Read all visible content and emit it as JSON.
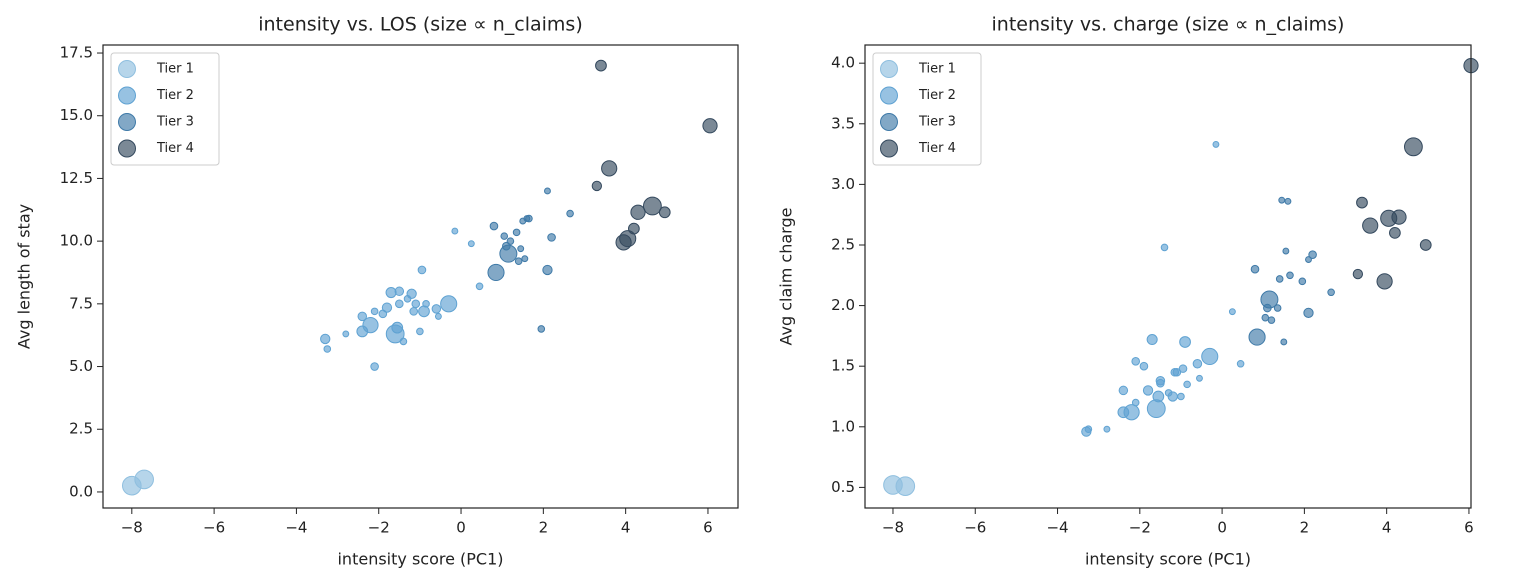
{
  "chart_data": [
    {
      "type": "scatter",
      "title": "intensity vs. LOS (size ∝ n_claims)",
      "xlabel": "intensity score (PC1)",
      "ylabel": "Avg length of stay",
      "xlim": [
        -8.7,
        6.73
      ],
      "ylim": [
        -0.64,
        17.82
      ],
      "xticks": [
        {
          "value": -8,
          "label": "−8"
        },
        {
          "value": -6,
          "label": "−6"
        },
        {
          "value": -4,
          "label": "−4"
        },
        {
          "value": -2,
          "label": "−2"
        },
        0,
        2,
        4,
        6
      ],
      "yticks": [
        {
          "value": 0,
          "label": "0.0"
        },
        2.5,
        {
          "value": 5,
          "label": "5.0"
        },
        7.5,
        {
          "value": 10,
          "label": "10.0"
        },
        12.5,
        {
          "value": 15,
          "label": "15.0"
        },
        17.5
      ],
      "legend": "upper left",
      "series": [
        {
          "name": "Tier 1",
          "color": "#8fbfdf",
          "x": [
            -8.0,
            -7.7
          ],
          "y": [
            0.25,
            0.5
          ],
          "sizes": [
            120,
            120
          ]
        },
        {
          "name": "Tier 2",
          "color": "#5fa2d2",
          "x": [
            -3.3,
            -3.25,
            -2.8,
            -2.4,
            -2.4,
            -2.2,
            -2.1,
            -2.1,
            -1.9,
            -1.8,
            -1.7,
            -1.6,
            -1.55,
            -1.5,
            -1.5,
            -1.4,
            -1.3,
            -1.2,
            -1.15,
            -1.1,
            -1.0,
            -0.95,
            -0.9,
            -0.85,
            -0.6,
            -0.55,
            -0.3,
            -0.15,
            0.25,
            0.45
          ],
          "y": [
            6.1,
            5.7,
            6.3,
            7.0,
            6.4,
            6.65,
            5.0,
            7.2,
            7.1,
            7.35,
            7.95,
            6.3,
            6.55,
            8.0,
            7.5,
            6.0,
            7.7,
            7.9,
            7.2,
            7.5,
            6.4,
            8.85,
            7.2,
            7.5,
            7.3,
            7.0,
            7.5,
            10.4,
            9.9,
            8.2
          ],
          "sizes": [
            30,
            15,
            12,
            25,
            40,
            80,
            20,
            15,
            20,
            30,
            35,
            110,
            40,
            25,
            20,
            15,
            15,
            30,
            20,
            20,
            15,
            20,
            40,
            15,
            25,
            12,
            90,
            12,
            12,
            15
          ]
        },
        {
          "name": "Tier 3",
          "color": "#3f7aa8",
          "x": [
            0.85,
            0.8,
            1.05,
            1.15,
            1.1,
            1.2,
            1.35,
            1.4,
            1.45,
            1.5,
            1.55,
            1.6,
            1.65,
            1.95,
            2.1,
            2.1,
            2.2,
            2.65
          ],
          "y": [
            8.75,
            10.6,
            10.2,
            9.5,
            9.8,
            10.0,
            10.35,
            9.2,
            9.7,
            10.8,
            9.3,
            10.9,
            10.9,
            6.5,
            12.0,
            8.85,
            10.15,
            11.1
          ],
          "sizes": [
            90,
            20,
            15,
            100,
            20,
            15,
            15,
            15,
            12,
            12,
            12,
            12,
            15,
            15,
            12,
            30,
            20,
            15
          ]
        },
        {
          "name": "Tier 4",
          "color": "#34495e",
          "x": [
            3.3,
            3.4,
            3.6,
            3.95,
            4.05,
            4.2,
            4.3,
            4.65,
            4.95,
            6.05
          ],
          "y": [
            12.2,
            17.0,
            12.9,
            9.95,
            10.1,
            10.5,
            11.15,
            11.4,
            11.15,
            14.6
          ],
          "sizes": [
            30,
            40,
            80,
            80,
            90,
            40,
            70,
            110,
            40,
            70
          ]
        }
      ]
    },
    {
      "type": "scatter",
      "title": "intensity vs. charge (size ∝ n_claims)",
      "xlabel": "intensity score (PC1)",
      "ylabel": "Avg claim charge",
      "xlim": [
        -8.68,
        6.05
      ],
      "ylim": [
        0.33,
        4.15
      ],
      "xticks": [
        {
          "value": -8,
          "label": "−8"
        },
        {
          "value": -6,
          "label": "−6"
        },
        {
          "value": -4,
          "label": "−4"
        },
        {
          "value": -2,
          "label": "−2"
        },
        0,
        2,
        4,
        6
      ],
      "yticks": [
        0.5,
        {
          "value": 1,
          "label": "1.0"
        },
        1.5,
        {
          "value": 2,
          "label": "2.0"
        },
        2.5,
        {
          "value": 3,
          "label": "3.0"
        },
        3.5,
        {
          "value": 4,
          "label": "4.0"
        }
      ],
      "legend": "upper left",
      "series": [
        {
          "name": "Tier 1",
          "color": "#8fbfdf",
          "x": [
            -8.0,
            -7.7
          ],
          "y": [
            0.52,
            0.51
          ],
          "sizes": [
            120,
            120
          ]
        },
        {
          "name": "Tier 2",
          "color": "#5fa2d2",
          "x": [
            -3.3,
            -3.25,
            -2.8,
            -2.4,
            -2.4,
            -2.2,
            -2.1,
            -2.1,
            -1.9,
            -1.8,
            -1.7,
            -1.6,
            -1.55,
            -1.5,
            -1.5,
            -1.4,
            -1.3,
            -1.2,
            -1.15,
            -1.1,
            -1.0,
            -0.95,
            -0.9,
            -0.85,
            -0.6,
            -0.55,
            -0.3,
            -0.15,
            0.25,
            0.45
          ],
          "y": [
            0.96,
            0.98,
            0.98,
            1.3,
            1.12,
            1.12,
            1.54,
            1.2,
            1.5,
            1.3,
            1.72,
            1.15,
            1.25,
            1.38,
            1.36,
            2.48,
            1.28,
            1.25,
            1.45,
            1.45,
            1.25,
            1.48,
            1.7,
            1.35,
            1.52,
            1.4,
            1.58,
            3.33,
            1.95,
            1.52
          ],
          "sizes": [
            30,
            15,
            12,
            25,
            40,
            80,
            20,
            15,
            20,
            30,
            35,
            110,
            40,
            25,
            20,
            15,
            15,
            30,
            20,
            20,
            15,
            20,
            40,
            15,
            25,
            12,
            90,
            12,
            12,
            15
          ]
        },
        {
          "name": "Tier 3",
          "color": "#3f7aa8",
          "x": [
            0.85,
            0.8,
            1.05,
            1.15,
            1.1,
            1.2,
            1.35,
            1.4,
            1.45,
            1.5,
            1.55,
            1.6,
            1.65,
            1.95,
            2.1,
            2.1,
            2.2,
            2.65
          ],
          "y": [
            1.74,
            2.3,
            1.9,
            2.05,
            1.98,
            1.88,
            1.98,
            2.22,
            2.87,
            1.7,
            2.45,
            2.86,
            2.25,
            2.2,
            2.38,
            1.94,
            2.42,
            2.11
          ],
          "sizes": [
            90,
            20,
            15,
            100,
            20,
            15,
            15,
            15,
            12,
            12,
            12,
            12,
            15,
            15,
            12,
            30,
            20,
            15
          ]
        },
        {
          "name": "Tier 4",
          "color": "#34495e",
          "x": [
            3.3,
            3.4,
            3.6,
            3.95,
            4.05,
            4.2,
            4.3,
            4.65,
            4.95,
            6.05
          ],
          "y": [
            2.26,
            2.85,
            2.66,
            2.2,
            2.72,
            2.6,
            2.73,
            3.31,
            2.5,
            3.98
          ],
          "sizes": [
            30,
            40,
            80,
            80,
            90,
            40,
            70,
            110,
            40,
            70
          ]
        }
      ]
    }
  ]
}
